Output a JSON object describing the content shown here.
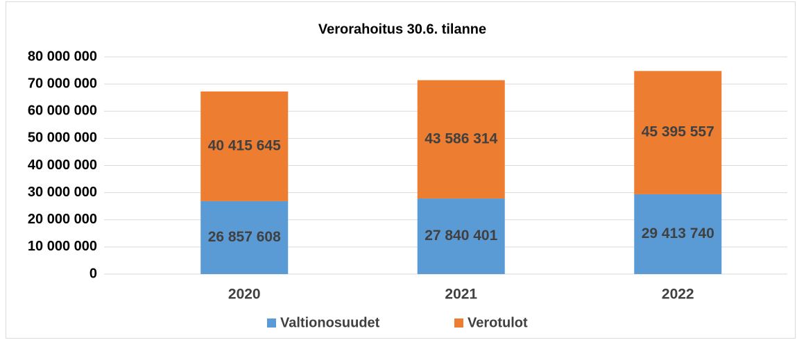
{
  "chart_data": {
    "type": "stacked_bar",
    "title": "Verorahoitus 30.6. tilanne",
    "categories": [
      "2020",
      "2021",
      "2022"
    ],
    "series": [
      {
        "name": "Valtionosuudet",
        "color": "#5b9bd5",
        "values": [
          26857608,
          27840401,
          29413740
        ],
        "value_labels": [
          "26 857 608",
          "27 840 401",
          "29 413 740"
        ]
      },
      {
        "name": "Verotulot",
        "color": "#ed7d31",
        "values": [
          40415645,
          43586314,
          45395557
        ],
        "value_labels": [
          "40 415 645",
          "43 586 314",
          "45 395 557"
        ]
      }
    ],
    "ylim": [
      0,
      80000000
    ],
    "yticks": [
      {
        "value": 0,
        "label": "0"
      },
      {
        "value": 10000000,
        "label": "10 000 000"
      },
      {
        "value": 20000000,
        "label": "20 000 000"
      },
      {
        "value": 30000000,
        "label": "30 000 000"
      },
      {
        "value": 40000000,
        "label": "40 000 000"
      },
      {
        "value": 50000000,
        "label": "50 000 000"
      },
      {
        "value": 60000000,
        "label": "60 000 000"
      },
      {
        "value": 70000000,
        "label": "70 000 000"
      },
      {
        "value": 80000000,
        "label": "80 000 000"
      }
    ],
    "grid": true,
    "legend": "bottom"
  }
}
